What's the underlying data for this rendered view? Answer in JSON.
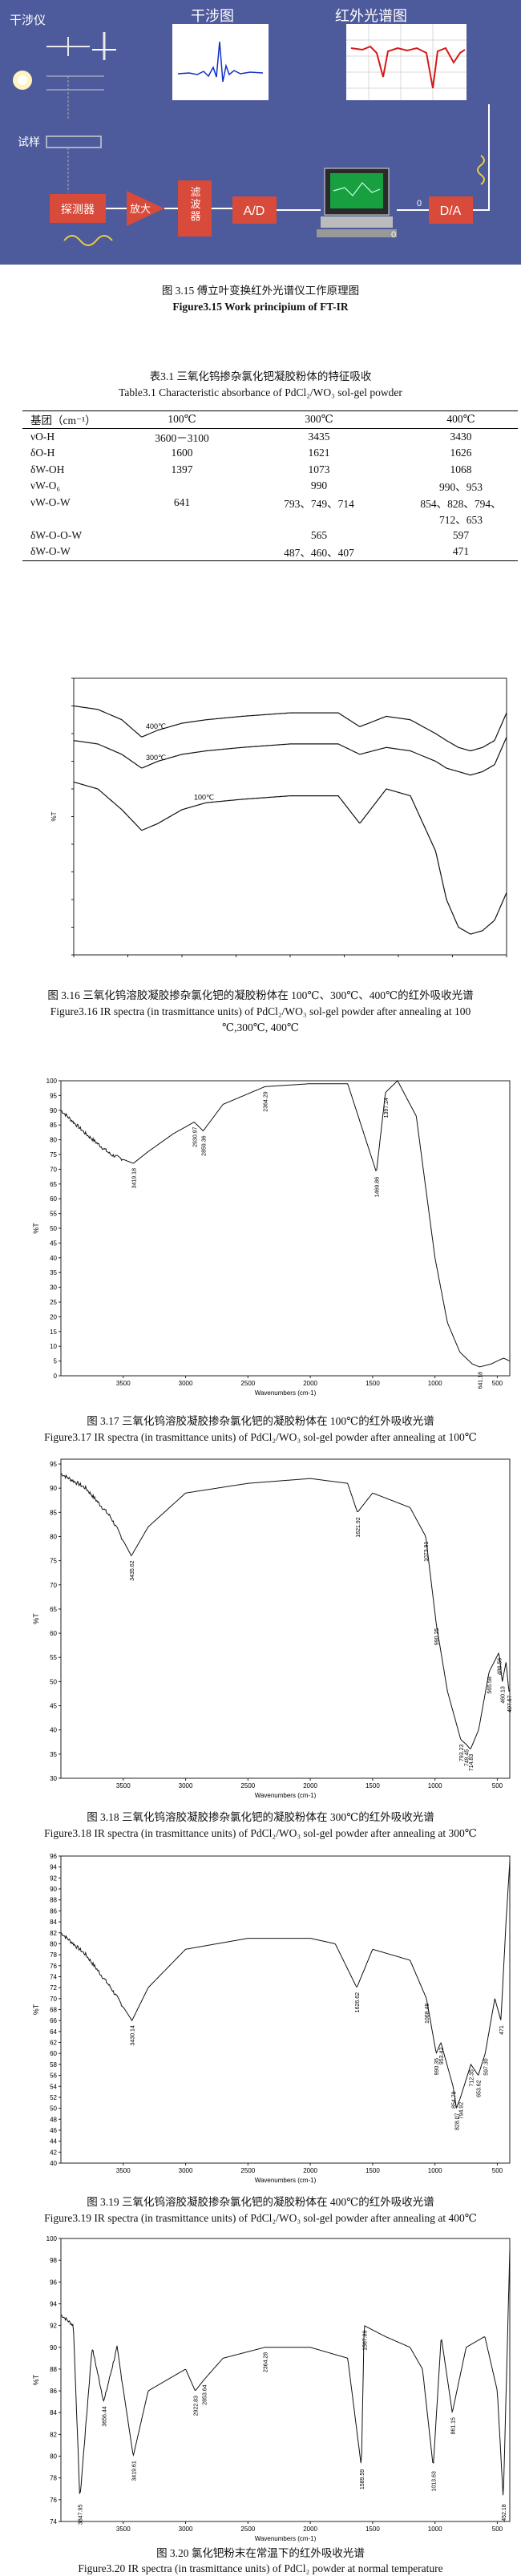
{
  "fig315": {
    "labels": {
      "interferometer": "干涉仪",
      "sample": "试样",
      "interferogram": "干涉图",
      "ir_spectrum": "红外光谱图",
      "detector": "探测器",
      "amplifier": "放大",
      "filter": "滤波器",
      "ad": "A/D",
      "da": "D/A",
      "zero1": "0",
      "zero2": "0"
    },
    "colors": {
      "bg": "#4d5a9c",
      "box": "#d84a3a",
      "panel": "#ffffff",
      "spectrum_blue": "#1030c8",
      "spectrum_red": "#d81818"
    },
    "caption_cn": "图 3.15  傅立叶变换红外光谱仪工作原理图",
    "caption_en": "Figure3.15 Work principium of FT-IR"
  },
  "table31": {
    "title_cn": "表3.1  三氧化钨掺杂氯化钯凝胶粉体的特征吸收",
    "title_en": "Table3.1 Characteristic absorbance of PdCl₂/WO₃ sol-gel powder",
    "header": [
      "基团（cm⁻¹）",
      "100℃",
      "300℃",
      "400℃"
    ],
    "rows": [
      [
        "νO-H",
        "3600－3100",
        "3435",
        "3430"
      ],
      [
        "δO-H",
        "1600",
        "1621",
        "1626"
      ],
      [
        "δW-OH",
        "1397",
        "1073",
        "1068"
      ],
      [
        "νW-O₆",
        "",
        "990",
        "990、953"
      ],
      [
        "νW-O-W",
        "641",
        "793、749、714",
        "854、828、794、"
      ],
      [
        "",
        "",
        "",
        "712、653"
      ],
      [
        "δW-O-O-W",
        "",
        "565",
        "597"
      ],
      [
        "δW-O-W",
        "",
        "487、460、407",
        "471"
      ]
    ]
  },
  "fig316": {
    "caption_cn": "图 3.16  三氧化钨溶胶凝胶掺杂氯化钯的凝胶粉体在 100℃、300℃、400℃的红外吸收光谱",
    "caption_en_1": "Figure3.16 IR spectra (in trasmittance units) of PdCl₂/WO₃ sol-gel powder after annealing at 100",
    "caption_en_2": "℃,300℃, 400℃",
    "chart_data": {
      "type": "line",
      "xlabel": "",
      "ylabel": "%T",
      "x": [
        4000,
        3800,
        3600,
        3435,
        3300,
        3100,
        2900,
        2600,
        2200,
        1800,
        1621,
        1400,
        1200,
        990,
        900,
        800,
        700,
        600,
        500,
        400
      ],
      "series": [
        {
          "name": "400℃",
          "values": [
            92,
            91,
            88,
            83,
            85,
            87,
            88,
            89,
            90,
            90,
            86,
            89,
            88,
            84,
            82,
            80,
            79,
            80,
            82,
            90
          ]
        },
        {
          "name": "300℃",
          "values": [
            82,
            81,
            78,
            74,
            76,
            78,
            79,
            80,
            81,
            81,
            78,
            80,
            79,
            76,
            74,
            73,
            72,
            73,
            75,
            83
          ]
        },
        {
          "name": "100℃",
          "values": [
            70,
            68,
            62,
            56,
            58,
            62,
            64,
            65,
            66,
            66,
            58,
            68,
            66,
            50,
            36,
            28,
            26,
            27,
            30,
            38
          ]
        }
      ]
    }
  },
  "fig317": {
    "caption_cn": "图 3.17  三氧化钨溶胶凝胶掺杂氯化钯的凝胶粉体在 100℃的红外吸收光谱",
    "caption_en": "Figure3.17 IR spectra (in trasmittance units) of PdCl₂/WO₃ sol-gel powder after annealing at 100℃",
    "chart_data": {
      "type": "line",
      "xlabel": "Wavenumbers (cm-1)",
      "ylabel": "%T",
      "xlim": [
        4000,
        400
      ],
      "ylim": [
        0,
        100
      ],
      "x_ticks": [
        3500,
        3000,
        2500,
        2000,
        1500,
        1000,
        500
      ],
      "y_ticks": [
        0,
        5,
        10,
        15,
        20,
        25,
        30,
        35,
        40,
        45,
        50,
        55,
        60,
        65,
        70,
        75,
        80,
        85,
        90,
        95,
        100
      ],
      "peak_labels": [
        "3419.18",
        "2930.97",
        "2859.36",
        "2364.29",
        "1469.86",
        "1397.24",
        "641.18"
      ],
      "x": [
        4000,
        3800,
        3600,
        3419,
        3300,
        3100,
        2931,
        2859,
        2700,
        2364,
        2000,
        1700,
        1470,
        1397,
        1300,
        1150,
        1000,
        900,
        800,
        700,
        641,
        550,
        450,
        400
      ],
      "values": [
        90,
        82,
        75,
        72,
        76,
        82,
        86,
        83,
        92,
        98,
        99,
        99,
        69,
        96,
        100,
        88,
        40,
        18,
        8,
        4,
        3,
        4,
        6,
        5
      ]
    }
  },
  "fig318": {
    "caption_cn": "图 3.18  三氧化钨溶胶凝胶掺杂氯化钯的凝胶粉体在 300℃的红外吸收光谱",
    "caption_en": "Figure3.18 IR spectra (in trasmittance units) of PdCl₂/WO₃ sol-gel powder after annealing at 300℃",
    "chart_data": {
      "type": "line",
      "xlabel": "Wavenumbers (cm-1)",
      "ylabel": "%T",
      "xlim": [
        4000,
        400
      ],
      "ylim": [
        30,
        96
      ],
      "x_ticks": [
        3500,
        3000,
        2500,
        2000,
        1500,
        1000,
        500
      ],
      "y_ticks": [
        30,
        35,
        40,
        45,
        50,
        55,
        60,
        65,
        70,
        75,
        80,
        85,
        90,
        95
      ],
      "peak_labels": [
        "3435.62",
        "1621.92",
        "1073.91",
        "990.25",
        "793.23",
        "749.45",
        "714.83",
        "565.58",
        "486.56",
        "460.13",
        "407.67"
      ],
      "x": [
        4000,
        3800,
        3600,
        3435,
        3300,
        3000,
        2500,
        2000,
        1700,
        1622,
        1500,
        1200,
        1074,
        990,
        900,
        793,
        749,
        715,
        650,
        566,
        487,
        460,
        430,
        407
      ],
      "values": [
        93,
        90,
        84,
        76,
        82,
        89,
        91,
        92,
        91,
        85,
        89,
        86,
        80,
        62,
        48,
        38,
        37,
        36,
        40,
        52,
        56,
        50,
        54,
        48
      ]
    }
  },
  "fig319": {
    "caption_cn": "图 3.19  三氧化钨溶胶凝胶掺杂氯化钯的凝胶粉体在 400℃的红外吸收光谱",
    "caption_en": "Figure3.19 IR spectra (in trasmittance units) of PdCl₂/WO₃ sol-gel powder after annealing at 400℃",
    "chart_data": {
      "type": "line",
      "xlabel": "Wavenumbers (cm-1)",
      "ylabel": "%T",
      "xlim": [
        4000,
        400
      ],
      "ylim": [
        40,
        96
      ],
      "x_ticks": [
        3500,
        3000,
        2500,
        2000,
        1500,
        1000,
        500
      ],
      "y_ticks": [
        40,
        42,
        44,
        46,
        48,
        50,
        52,
        54,
        56,
        58,
        60,
        62,
        64,
        66,
        68,
        70,
        72,
        74,
        76,
        78,
        80,
        82,
        84,
        86,
        88,
        90,
        92,
        94,
        96
      ],
      "peak_labels": [
        "3430.14",
        "1626.62",
        "1068.48",
        "990.35",
        "953.42",
        "854.78",
        "828.07",
        "794.92",
        "712.35",
        "653.62",
        "597.30",
        "471"
      ],
      "x": [
        4000,
        3800,
        3600,
        3430,
        3300,
        3000,
        2500,
        2000,
        1800,
        1627,
        1500,
        1200,
        1068,
        990,
        953,
        855,
        828,
        795,
        712,
        653,
        597,
        520,
        471,
        430,
        400
      ],
      "values": [
        82,
        78,
        72,
        66,
        72,
        79,
        81,
        81,
        80,
        72,
        79,
        77,
        70,
        60,
        62,
        54,
        50,
        52,
        58,
        56,
        60,
        70,
        66,
        84,
        95
      ]
    }
  },
  "fig320": {
    "caption_cn": "图 3.20  氯化钯粉末在常温下的红外吸收光谱",
    "caption_en": "Figure3.20 IR spectra (in trasmittance units) of PdCl₂ powder at normal temperature",
    "chart_data": {
      "type": "line",
      "xlabel": "Wavenumbers (cm-1)",
      "ylabel": "%T",
      "xlim": [
        4000,
        400
      ],
      "ylim": [
        74,
        100
      ],
      "x_ticks": [
        3500,
        3000,
        2500,
        2000,
        1500,
        1000,
        500
      ],
      "y_ticks": [
        74,
        76,
        78,
        80,
        82,
        84,
        86,
        88,
        90,
        92,
        94,
        96,
        98,
        100
      ],
      "peak_labels": [
        "3847.95",
        "3656.44",
        "3419.61",
        "2922.83",
        "2853.64",
        "2364.28",
        "1589.59",
        "1567.89",
        "1013.63",
        "861.15",
        "452.18"
      ],
      "x": [
        4000,
        3900,
        3848,
        3750,
        3656,
        3550,
        3420,
        3300,
        3000,
        2923,
        2854,
        2700,
        2364,
        2000,
        1700,
        1590,
        1568,
        1400,
        1200,
        1100,
        1014,
        950,
        861,
        750,
        600,
        500,
        452,
        420,
        400
      ],
      "values": [
        93,
        92,
        76,
        90,
        85,
        90,
        80,
        86,
        88,
        86,
        87,
        89,
        90,
        90,
        89,
        79,
        92,
        91,
        90,
        88,
        79,
        91,
        84,
        90,
        91,
        86,
        76,
        90,
        99
      ]
    }
  }
}
